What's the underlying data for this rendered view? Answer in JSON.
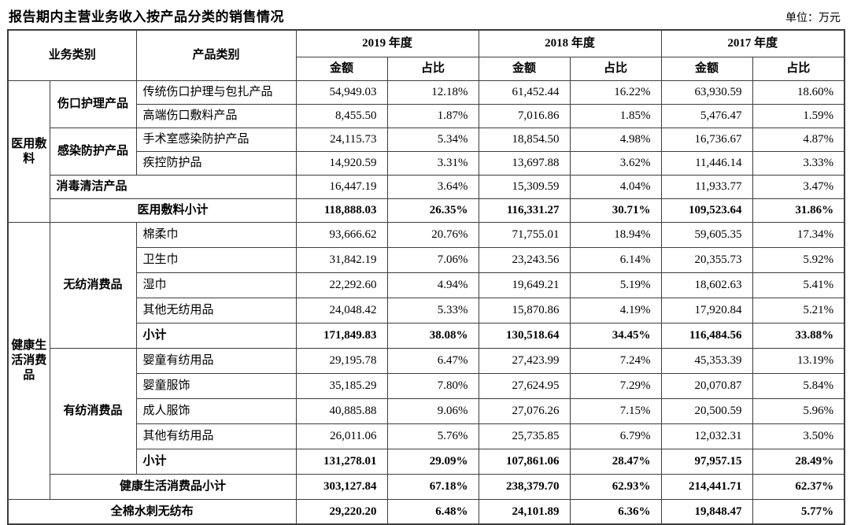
{
  "page": {
    "title": "报告期内主营业务收入按产品分类的销售情况",
    "unit_note": "单位：万元"
  },
  "table": {
    "header": {
      "business_category": "业务类别",
      "product_category": "产品类别",
      "year_groups": [
        {
          "label": "2019 年度"
        },
        {
          "label": "2018 年度"
        },
        {
          "label": "2017 年度"
        }
      ],
      "amount_label": "金额",
      "ratio_label": "占比"
    },
    "sections": [
      {
        "business": "医用敷料",
        "groups": [
          {
            "label": "伤口护理产品",
            "products": [
              {
                "label": "传统伤口护理与包扎产品",
                "values": [
                  "54,949.03",
                  "12.18%",
                  "61,452.44",
                  "16.22%",
                  "63,930.59",
                  "18.60%"
                ]
              },
              {
                "label": "高端伤口敷料产品",
                "values": [
                  "8,455.50",
                  "1.87%",
                  "7,016.86",
                  "1.85%",
                  "5,476.47",
                  "1.59%"
                ]
              }
            ]
          },
          {
            "label": "感染防护产品",
            "products": [
              {
                "label": "手术室感染防护产品",
                "values": [
                  "24,115.73",
                  "5.34%",
                  "18,854.50",
                  "4.98%",
                  "16,736.67",
                  "4.87%"
                ]
              },
              {
                "label": "疾控防护品",
                "values": [
                  "14,920.59",
                  "3.31%",
                  "13,697.88",
                  "3.62%",
                  "11,446.14",
                  "3.33%"
                ]
              }
            ]
          },
          {
            "label": "消毒清洁产品",
            "merged": true,
            "values": [
              "16,447.19",
              "3.64%",
              "15,309.59",
              "4.04%",
              "11,933.77",
              "3.47%"
            ]
          }
        ],
        "subtotal": {
          "label": "医用敷料小计",
          "values": [
            "118,888.03",
            "26.35%",
            "116,331.27",
            "30.71%",
            "109,523.64",
            "31.86%"
          ]
        }
      },
      {
        "business": "健康生活消费品",
        "groups": [
          {
            "label": "无纺消费品",
            "products": [
              {
                "label": "棉柔巾",
                "values": [
                  "93,666.62",
                  "20.76%",
                  "71,755.01",
                  "18.94%",
                  "59,605.35",
                  "17.34%"
                ]
              },
              {
                "label": "卫生巾",
                "values": [
                  "31,842.19",
                  "7.06%",
                  "23,243.56",
                  "6.14%",
                  "20,355.73",
                  "5.92%"
                ]
              },
              {
                "label": "湿巾",
                "values": [
                  "22,292.60",
                  "4.94%",
                  "19,649.21",
                  "5.19%",
                  "18,602.63",
                  "5.41%"
                ]
              },
              {
                "label": "其他无纺用品",
                "values": [
                  "24,048.42",
                  "5.33%",
                  "15,870.86",
                  "4.19%",
                  "17,920.84",
                  "5.21%"
                ]
              }
            ],
            "subtotal": {
              "label": "小计",
              "values": [
                "171,849.83",
                "38.08%",
                "130,518.64",
                "34.45%",
                "116,484.56",
                "33.88%"
              ]
            }
          },
          {
            "label": "有纺消费品",
            "products": [
              {
                "label": "婴童有纺用品",
                "values": [
                  "29,195.78",
                  "6.47%",
                  "27,423.99",
                  "7.24%",
                  "45,353.39",
                  "13.19%"
                ]
              },
              {
                "label": "婴童服饰",
                "values": [
                  "35,185.29",
                  "7.80%",
                  "27,624.95",
                  "7.29%",
                  "20,070.87",
                  "5.84%"
                ]
              },
              {
                "label": "成人服饰",
                "values": [
                  "40,885.88",
                  "9.06%",
                  "27,076.26",
                  "7.15%",
                  "20,500.59",
                  "5.96%"
                ]
              },
              {
                "label": "其他有纺用品",
                "values": [
                  "26,011.06",
                  "5.76%",
                  "25,735.85",
                  "6.79%",
                  "12,032.31",
                  "3.50%"
                ]
              }
            ],
            "subtotal": {
              "label": "小计",
              "values": [
                "131,278.01",
                "29.09%",
                "107,861.06",
                "28.47%",
                "97,957.15",
                "28.49%"
              ]
            }
          }
        ],
        "subtotal": {
          "label": "健康生活消费品小计",
          "values": [
            "303,127.84",
            "67.18%",
            "238,379.70",
            "62.93%",
            "214,441.71",
            "62.37%"
          ]
        }
      }
    ],
    "footer_row": {
      "label": "全棉水刺无纺布",
      "values": [
        "29,220.20",
        "6.48%",
        "24,101.89",
        "6.36%",
        "19,848.47",
        "5.77%"
      ]
    }
  }
}
